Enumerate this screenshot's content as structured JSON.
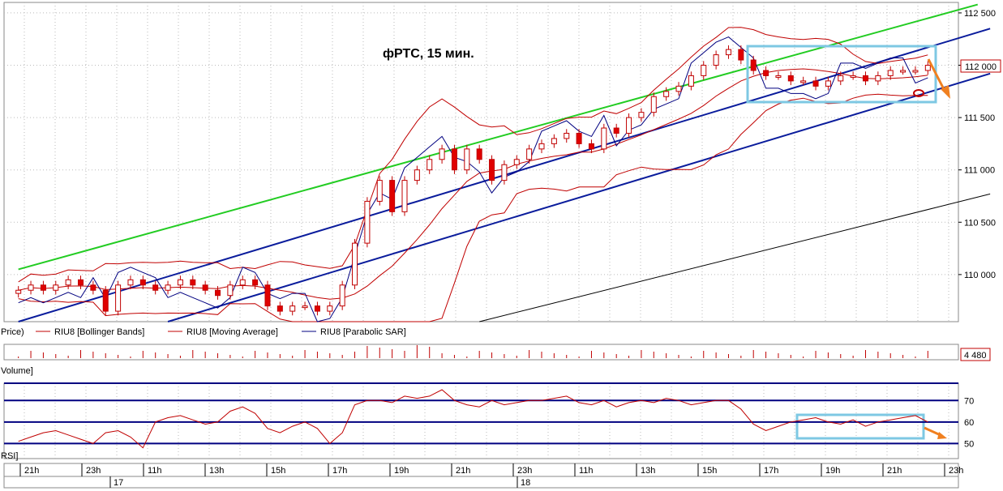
{
  "chart_title": "фРТС, 15 мин.",
  "legend": {
    "price": "Price)",
    "bollinger": "RIU8 [Bollinger Bands]",
    "ma": "RIU8 [Moving Average]",
    "sar": "RIU8 [Parabolic SAR]"
  },
  "volume_label": "Volume]",
  "volume_value": "4 480",
  "rsi_label": "RSI]",
  "price_axis": {
    "ticks": [
      "112 500",
      "112 000",
      "111 500",
      "111 000",
      "110 500",
      "110 000"
    ],
    "current_value": "112 000"
  },
  "rsi_axis": {
    "ticks": [
      "70",
      "60",
      "50"
    ]
  },
  "time_axis": {
    "hours": [
      "21h",
      "23h",
      "11h",
      "13h",
      "15h",
      "17h",
      "19h",
      "21h",
      "23h",
      "11h",
      "13h",
      "15h",
      "17h",
      "19h",
      "21h",
      "23h"
    ],
    "days": [
      "17",
      "18"
    ]
  },
  "colors": {
    "up_candle": "#ffffff",
    "down_candle": "#e00000",
    "bollinger": "#c00000",
    "sar": "#000080",
    "channel_outer": "#22cc22",
    "channel": "#0a1c9c",
    "highlight": "#7ec8e3",
    "arrow": "#f08020"
  },
  "chart_data": [
    {
      "type": "candlestick",
      "title": "фРТС, 15 мин.",
      "y_range": [
        109550,
        112600
      ],
      "current_price": 112000,
      "series": [
        "RIU8 [Bollinger Bands]",
        "RIU8 [Moving Average]",
        "RIU8 [Parabolic SAR]"
      ],
      "closes": [
        109850,
        109900,
        109850,
        109900,
        109950,
        109900,
        109850,
        109650,
        109900,
        109950,
        109900,
        109850,
        109900,
        109950,
        109900,
        109850,
        109800,
        109900,
        109950,
        109900,
        109700,
        109650,
        109700,
        109700,
        109650,
        109700,
        109900,
        110300,
        110700,
        110900,
        110600,
        110900,
        111000,
        111100,
        111200,
        111000,
        111200,
        111100,
        110900,
        111050,
        111100,
        111200,
        111250,
        111300,
        111350,
        111250,
        111200,
        111400,
        111350,
        111500,
        111550,
        111700,
        111750,
        111800,
        111900,
        112000,
        112100,
        112150,
        112050,
        111950,
        111900,
        111900,
        111850,
        111850,
        111800,
        111850,
        111900,
        111900,
        111850,
        111900,
        111950,
        111950,
        111950,
        112000
      ],
      "guide_lines": [
        {
          "name": "green-channel",
          "from": [
            0,
            110050
          ],
          "to": [
            77,
            112580
          ]
        },
        {
          "name": "upper-blue-channel",
          "from": [
            0,
            109550
          ],
          "to": [
            78,
            112350
          ]
        },
        {
          "name": "lower-blue-channel",
          "from": [
            12,
            109550
          ],
          "to": [
            78,
            111920
          ]
        },
        {
          "name": "black-trend-line",
          "from": [
            37,
            109550
          ],
          "to": [
            78,
            110770
          ]
        }
      ]
    },
    {
      "type": "bar",
      "title": "Volume",
      "last_value": 4480
    },
    {
      "type": "line",
      "title": "RSI",
      "levels": [
        70,
        60,
        50
      ],
      "values": [
        51,
        53,
        55,
        56,
        54,
        52,
        50,
        55,
        56,
        53,
        48,
        60,
        62,
        63,
        61,
        59,
        60,
        65,
        67,
        64,
        57,
        55,
        58,
        60,
        57,
        50,
        55,
        68,
        70,
        70,
        69,
        72,
        71,
        72,
        75,
        70,
        68,
        67,
        70,
        68,
        69,
        70,
        70,
        71,
        72,
        69,
        68,
        70,
        67,
        69,
        70,
        69,
        71,
        70,
        68,
        69,
        70,
        70,
        66,
        59,
        56,
        58,
        60,
        61,
        62,
        60,
        59,
        61,
        58,
        60,
        61,
        62,
        63,
        60
      ]
    }
  ]
}
